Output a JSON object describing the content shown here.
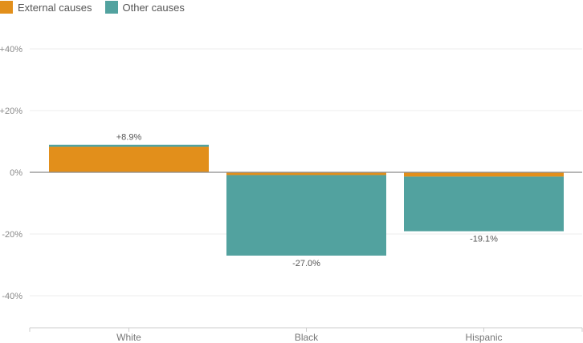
{
  "chart_data": {
    "type": "bar",
    "stacked": true,
    "title": "",
    "xlabel": "",
    "ylabel": "",
    "categories": [
      "White",
      "Black",
      "Hispanic"
    ],
    "series": [
      {
        "name": "External causes",
        "color": "#E28F1B",
        "values": [
          8.3,
          -0.9,
          -1.4
        ]
      },
      {
        "name": "Other causes",
        "color": "#52A29F",
        "values": [
          0.6,
          -26.1,
          -17.7
        ]
      }
    ],
    "totals": [
      8.9,
      -27.0,
      -19.1
    ],
    "total_labels": [
      "+8.9%",
      "-27.0%",
      "-19.1%"
    ],
    "ylim": [
      -50,
      40
    ],
    "yticks": [
      40,
      20,
      0,
      -20,
      -40
    ],
    "ytick_labels": [
      "+40%",
      "+20%",
      "0%",
      "-20%",
      "-40%"
    ],
    "grid": true,
    "legend_position": "top-left"
  },
  "legend": {
    "items": [
      {
        "label": "External causes",
        "color": "#E28F1B"
      },
      {
        "label": "Other causes",
        "color": "#52A29F"
      }
    ]
  }
}
